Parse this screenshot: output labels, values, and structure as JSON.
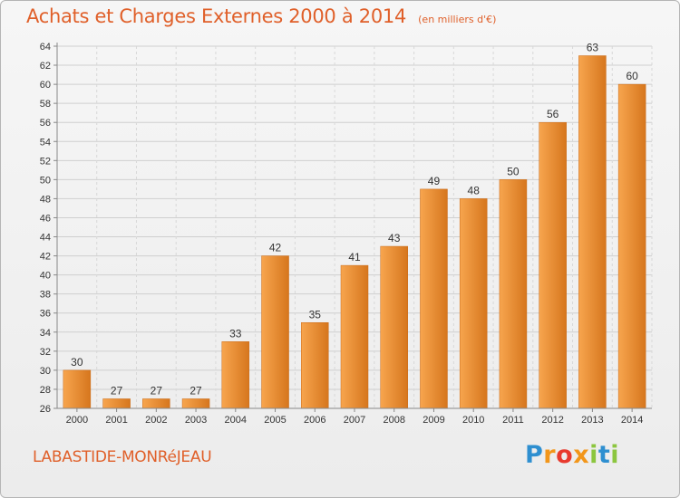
{
  "header": {
    "title": "Achats et Charges Externes 2000 à 2014",
    "unit": "(en milliers d'€)"
  },
  "footer": {
    "town": "LABASTIDE-MONRéJEAU",
    "brand": "Proxiti",
    "brand_letters": [
      {
        "char": "P",
        "color": "#2e8fd0"
      },
      {
        "char": "r",
        "color": "#f2961a"
      },
      {
        "char": "o",
        "color": "#e83a2e"
      },
      {
        "char": "x",
        "color": "#f2961a"
      },
      {
        "char": "i",
        "color": "#8cc63f"
      },
      {
        "char": "t",
        "color": "#2e8fd0"
      },
      {
        "char": "i",
        "color": "#8cc63f"
      }
    ]
  },
  "colors": {
    "accent": "#e0602a",
    "bar_light": "#f7a54e",
    "bar_dark": "#d6761d",
    "grid": "#cfcfcf"
  },
  "chart_data": {
    "type": "bar",
    "title": "Achats et Charges Externes 2000 à 2014",
    "subtitle": "(en milliers d'€)",
    "xlabel": "",
    "ylabel": "",
    "categories": [
      "2000",
      "2001",
      "2002",
      "2003",
      "2004",
      "2005",
      "2006",
      "2007",
      "2008",
      "2009",
      "2010",
      "2011",
      "2012",
      "2013",
      "2014"
    ],
    "values": [
      30,
      27,
      27,
      27,
      33,
      42,
      35,
      41,
      43,
      49,
      48,
      50,
      56,
      63,
      60
    ],
    "ylim": [
      26,
      64
    ],
    "yticks": [
      26,
      28,
      30,
      32,
      34,
      36,
      38,
      40,
      42,
      44,
      46,
      48,
      50,
      52,
      54,
      56,
      58,
      60,
      62,
      64
    ],
    "grid": true,
    "legend": "none"
  }
}
